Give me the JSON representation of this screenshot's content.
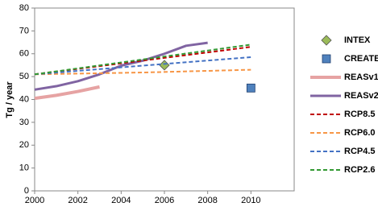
{
  "chart_data": {
    "type": "line",
    "y_label": "Tg / year",
    "xlim": [
      2000,
      2012
    ],
    "xticks": [
      2000,
      2002,
      2004,
      2006,
      2008,
      2010
    ],
    "ylim": [
      0,
      80
    ],
    "yticks": [
      0,
      10,
      20,
      30,
      40,
      50,
      60,
      70,
      80
    ],
    "series": [
      {
        "name": "INTEX",
        "color": "#9bbb59",
        "marker": "diamond",
        "x": [
          2006
        ],
        "values": [
          55
        ]
      },
      {
        "name": "CREATE",
        "color": "#4f81bd",
        "marker": "square",
        "x": [
          2010
        ],
        "values": [
          45
        ]
      },
      {
        "name": "REASv1",
        "color": "#e6a3a3",
        "dash": false,
        "width": 4,
        "x": [
          2000,
          2001,
          2002,
          2003
        ],
        "values": [
          40.5,
          41.8,
          43.5,
          45.5
        ]
      },
      {
        "name": "REASv2",
        "color": "#8064a2",
        "dash": false,
        "width": 3,
        "x": [
          2000,
          2001,
          2002,
          2003,
          2004,
          2005,
          2006,
          2007,
          2008
        ],
        "values": [
          44.3,
          45.8,
          48,
          51,
          54.8,
          57,
          60,
          63.5,
          64.8
        ]
      },
      {
        "name": "RCP8.5",
        "color": "#c00000",
        "dash": true,
        "width": 2,
        "x": [
          2000,
          2005,
          2010
        ],
        "values": [
          51,
          57,
          63
        ]
      },
      {
        "name": "RCP6.0",
        "color": "#f79646",
        "dash": true,
        "width": 2,
        "x": [
          2000,
          2005,
          2010
        ],
        "values": [
          51,
          51.8,
          53
        ]
      },
      {
        "name": "RCP4.5",
        "color": "#4472c4",
        "dash": true,
        "width": 2,
        "x": [
          2000,
          2005,
          2010
        ],
        "values": [
          51,
          54.8,
          58.5
        ]
      },
      {
        "name": "RCP2.6",
        "color": "#339933",
        "dash": true,
        "width": 2,
        "x": [
          2000,
          2005,
          2010
        ],
        "values": [
          51,
          57.5,
          64
        ]
      }
    ]
  }
}
